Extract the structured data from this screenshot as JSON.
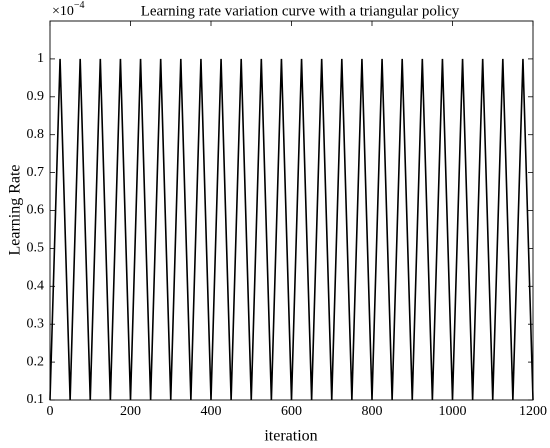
{
  "chart_data": {
    "type": "line",
    "title": "Learning rate variation curve with a triangular policy",
    "x_label": "iteration",
    "y_label": "Learning Rate",
    "y_multiplier": {
      "base": "×10",
      "exponent": "−4"
    },
    "x": [
      0,
      25,
      50,
      75,
      100,
      125,
      150,
      175,
      200,
      225,
      250,
      275,
      300,
      325,
      350,
      375,
      400,
      425,
      450,
      475,
      500,
      525,
      550,
      575,
      600,
      625,
      650,
      675,
      700,
      725,
      750,
      775,
      800,
      825,
      850,
      875,
      900,
      925,
      950,
      975,
      1000,
      1025,
      1050,
      1075,
      1100,
      1125,
      1150,
      1175,
      1200
    ],
    "series": [
      {
        "color": "#000000",
        "values": [
          0.1,
          1,
          0.1,
          1,
          0.1,
          1,
          0.1,
          1,
          0.1,
          1,
          0.1,
          1,
          0.1,
          1,
          0.1,
          1,
          0.1,
          1,
          0.1,
          1,
          0.1,
          1,
          0.1,
          1,
          0.1,
          1,
          0.1,
          1,
          0.1,
          1,
          0.1,
          1,
          0.1,
          1,
          0.1,
          1,
          0.1,
          1,
          0.1,
          1,
          0.1,
          1,
          0.1,
          1,
          0.1,
          1,
          0.1,
          1,
          0.1
        ]
      }
    ],
    "xlim": [
      0,
      1200
    ],
    "xticks": [
      0,
      200,
      400,
      600,
      800,
      1000,
      1200
    ],
    "ylim": [
      0.1,
      1.1
    ],
    "yticks": [
      0.1,
      0.2,
      0.3,
      0.4,
      0.5,
      0.6,
      0.7,
      0.8,
      0.9,
      1
    ],
    "grid": false
  }
}
